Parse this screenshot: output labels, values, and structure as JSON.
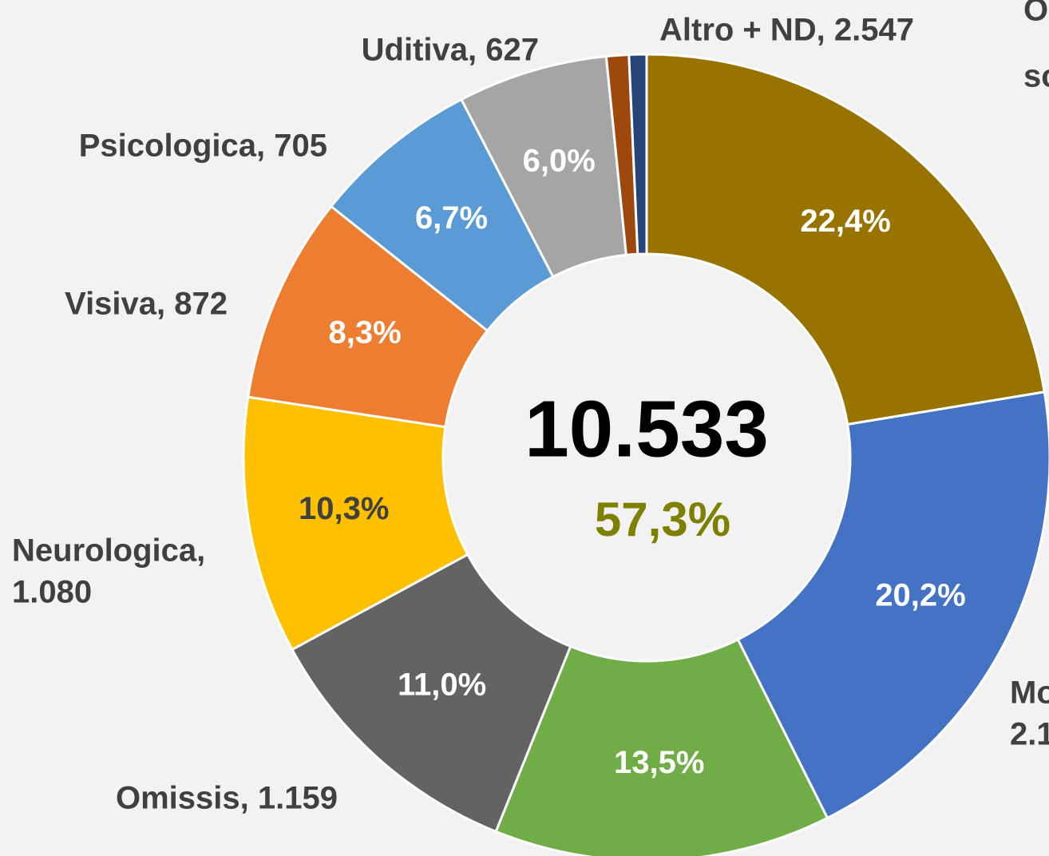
{
  "chart_data": {
    "type": "donut",
    "total": "10.533",
    "total_share": "57,3%",
    "total_share_color": "#7f7f00",
    "categories": [
      [
        "O",
        "sc"
      ],
      [
        "Mo",
        "2.1"
      ],
      null,
      [
        "Omissis, 1.159"
      ],
      [
        "Neurologica,",
        "1.080"
      ],
      [
        "Visiva, 872"
      ],
      [
        "Psicologica, 705"
      ],
      [
        "Uditiva, 627"
      ],
      null,
      [
        "Altro + ND, 2.547"
      ]
    ],
    "values": [
      22.4,
      20.2,
      13.5,
      11.0,
      10.3,
      8.3,
      6.7,
      6.0,
      0.9,
      0.7
    ],
    "value_labels": [
      "22,4%",
      "20,2%",
      "13,5%",
      "11,0%",
      "10,3%",
      "8,3%",
      "6,7%",
      "6,0%",
      null,
      null
    ],
    "colors": [
      "#997300",
      "#4472c4",
      "#70ad47",
      "#636363",
      "#ffc000",
      "#ed7d31",
      "#5b9bd5",
      "#a5a5a5",
      "#9e480e",
      "#264478"
    ],
    "label_colors": [
      "#ffffff",
      "#ffffff",
      "#ffffff",
      "#ffffff",
      "#404040",
      "#ffffff",
      "#ffffff",
      "#ffffff",
      "#ffffff",
      "#ffffff"
    ]
  }
}
